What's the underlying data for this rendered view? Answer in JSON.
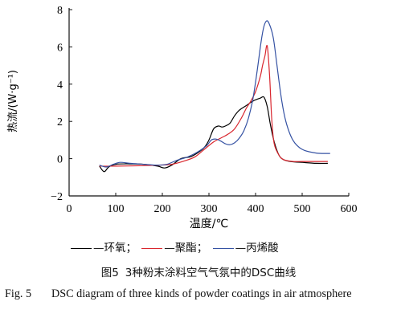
{
  "chart_data": {
    "type": "line",
    "xlabel": "温度/℃",
    "ylabel": "热流/(W·g⁻¹)",
    "xlim": [
      0,
      600
    ],
    "ylim": [
      -2,
      8
    ],
    "xticks": [
      0,
      100,
      200,
      300,
      400,
      500,
      600
    ],
    "yticks": [
      -2,
      0,
      2,
      4,
      6,
      8
    ],
    "grid": false,
    "legend_position": "bottom",
    "series": [
      {
        "name": "环氧",
        "color": "#000000",
        "x": [
          65,
          75,
          85,
          100,
          130,
          160,
          190,
          205,
          220,
          240,
          260,
          275,
          290,
          300,
          310,
          320,
          328,
          335,
          345,
          355,
          365,
          380,
          395,
          410,
          418,
          425,
          432,
          440,
          450,
          460,
          475,
          500,
          530,
          555
        ],
        "y": [
          -0.4,
          -0.7,
          -0.45,
          -0.3,
          -0.28,
          -0.3,
          -0.4,
          -0.5,
          -0.35,
          0.0,
          0.1,
          0.3,
          0.6,
          1.0,
          1.6,
          1.75,
          1.7,
          1.75,
          1.9,
          2.3,
          2.6,
          2.85,
          3.1,
          3.25,
          3.3,
          2.8,
          1.8,
          0.9,
          0.2,
          -0.05,
          -0.15,
          -0.2,
          -0.25,
          -0.25
        ]
      },
      {
        "name": "聚酯",
        "color": "#d9262e",
        "x": [
          65,
          100,
          150,
          190,
          220,
          250,
          270,
          290,
          310,
          325,
          340,
          355,
          370,
          380,
          390,
          400,
          410,
          415,
          420,
          425,
          430,
          435,
          440,
          450,
          460,
          480,
          500,
          530,
          555
        ],
        "y": [
          -0.4,
          -0.4,
          -0.38,
          -0.35,
          -0.3,
          -0.1,
          0.1,
          0.5,
          0.9,
          1.1,
          1.3,
          1.6,
          2.2,
          2.7,
          3.1,
          3.6,
          4.4,
          5.0,
          5.5,
          6.05,
          4.5,
          2.0,
          0.8,
          0.2,
          -0.05,
          -0.15,
          -0.15,
          -0.15,
          -0.15
        ]
      },
      {
        "name": "丙烯酸",
        "color": "#3552a3",
        "x": [
          65,
          80,
          95,
          110,
          130,
          160,
          190,
          210,
          230,
          255,
          275,
          295,
          305,
          315,
          325,
          335,
          345,
          355,
          365,
          375,
          385,
          395,
          405,
          412,
          418,
          424,
          430,
          438,
          445,
          455,
          465,
          480,
          500,
          530,
          560
        ],
        "y": [
          -0.35,
          -0.45,
          -0.3,
          -0.2,
          -0.25,
          -0.3,
          -0.35,
          -0.3,
          -0.1,
          0.1,
          0.35,
          0.7,
          1.0,
          1.05,
          0.95,
          0.8,
          0.75,
          0.85,
          1.1,
          1.5,
          2.2,
          3.3,
          5.0,
          6.3,
          7.1,
          7.4,
          7.2,
          6.5,
          5.2,
          3.3,
          2.0,
          1.0,
          0.5,
          0.3,
          0.28
        ]
      }
    ]
  },
  "legend": {
    "items": [
      {
        "label": "—环氧；"
      },
      {
        "label": "—聚酯；"
      },
      {
        "label": "—丙烯酸"
      }
    ]
  },
  "caption": {
    "cn_label": "图5",
    "cn_text": "3种粉末涂料空气气氛中的DSC曲线",
    "en_label": "Fig. 5",
    "en_text": "DSC diagram of three kinds of powder coatings in air atmosphere"
  }
}
